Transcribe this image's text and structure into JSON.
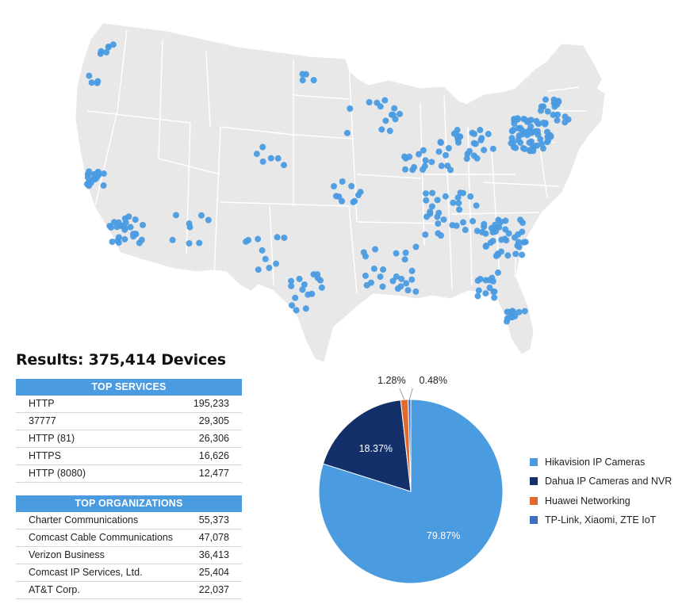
{
  "title": "Results: 375,414 Devices",
  "top_services": {
    "header": "TOP SERVICES",
    "rows": [
      {
        "name": "HTTP",
        "count": "195,233"
      },
      {
        "name": "37777",
        "count": "29,305"
      },
      {
        "name": "HTTP (81)",
        "count": "26,306"
      },
      {
        "name": "HTTPS",
        "count": "16,626"
      },
      {
        "name": "HTTP (8080)",
        "count": "12,477"
      }
    ]
  },
  "top_organizations": {
    "header": "TOP ORGANIZATIONS",
    "rows": [
      {
        "name": "Charter Communications",
        "count": "55,373"
      },
      {
        "name": "Comcast Cable Communications",
        "count": "47,078"
      },
      {
        "name": "Verizon Business",
        "count": "36,413"
      },
      {
        "name": "Comcast IP Services, Ltd.",
        "count": "25,404"
      },
      {
        "name": "AT&T Corp.",
        "count": "22,037"
      }
    ]
  },
  "colors": {
    "map_fill": "#e8e8e8",
    "map_border": "#ffffff",
    "dot": "#4a9be0",
    "table_header": "#4a9be0"
  },
  "chart_data": {
    "type": "pie",
    "series": [
      {
        "name": "Hikavision IP Cameras",
        "value": 79.87,
        "label": "79.87%",
        "color": "#4a9be0"
      },
      {
        "name": "Dahua IP Cameras and NVR",
        "value": 18.37,
        "label": "18.37%",
        "color": "#13306b"
      },
      {
        "name": "Huawei Networking",
        "value": 1.28,
        "label": "1.28%",
        "color": "#e06a2e"
      },
      {
        "name": "TP-Link, Xiaomi, ZTE IoT",
        "value": 0.48,
        "label": "0.48%",
        "color": "#3d6fc4"
      }
    ],
    "legend_position": "right"
  }
}
